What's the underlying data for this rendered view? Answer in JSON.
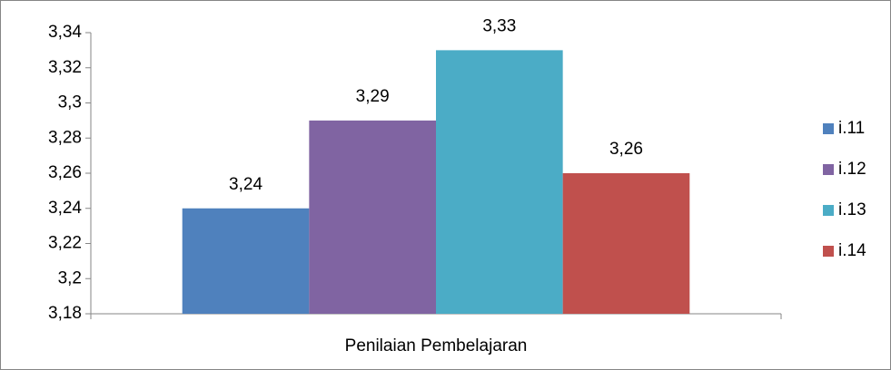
{
  "chart_data": {
    "type": "bar",
    "categories": [
      "Penilaian Pembelajaran"
    ],
    "series": [
      {
        "name": "i.11",
        "color": "#4f81bd",
        "values": [
          3.24
        ],
        "value_labels": [
          "3,24"
        ]
      },
      {
        "name": "i.12",
        "color": "#8064a2",
        "values": [
          3.29
        ],
        "value_labels": [
          "3,29"
        ]
      },
      {
        "name": "i.13",
        "color": "#4bacc6",
        "values": [
          3.33
        ],
        "value_labels": [
          "3,33"
        ]
      },
      {
        "name": "i.14",
        "color": "#c0504d",
        "values": [
          3.26
        ],
        "value_labels": [
          "3,26"
        ]
      }
    ],
    "ylim": [
      3.18,
      3.34
    ],
    "yticks": [
      {
        "value": 3.18,
        "label": "3,18"
      },
      {
        "value": 3.2,
        "label": "3,2"
      },
      {
        "value": 3.22,
        "label": "3,22"
      },
      {
        "value": 3.24,
        "label": "3,24"
      },
      {
        "value": 3.26,
        "label": "3,26"
      },
      {
        "value": 3.28,
        "label": "3,28"
      },
      {
        "value": 3.3,
        "label": "3,3"
      },
      {
        "value": 3.32,
        "label": "3,32"
      },
      {
        "value": 3.34,
        "label": "3,34"
      }
    ],
    "legend": "right"
  }
}
